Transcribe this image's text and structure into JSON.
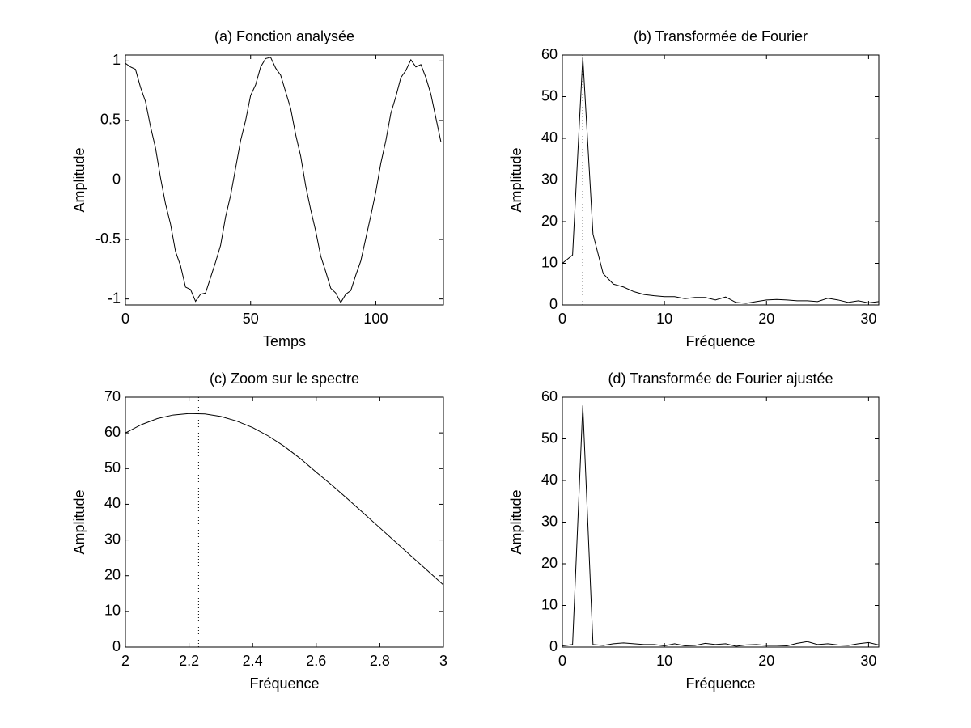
{
  "chart_data": [
    {
      "type": "line",
      "title": "(a) Fonction analysée",
      "xlabel": "Temps",
      "ylabel": "Amplitude",
      "color": "#000000",
      "x": [
        0,
        2,
        4,
        6,
        8,
        10,
        12,
        14,
        16,
        18,
        20,
        22,
        24,
        26,
        28,
        30,
        32,
        34,
        36,
        38,
        40,
        42,
        44,
        46,
        48,
        50,
        52,
        54,
        56,
        58,
        60,
        62,
        64,
        66,
        68,
        70,
        72,
        74,
        76,
        78,
        80,
        82,
        84,
        86,
        88,
        90,
        92,
        94,
        96,
        98,
        100,
        102,
        104,
        106,
        108,
        110,
        112,
        114,
        116,
        118,
        120,
        122,
        124,
        126
      ],
      "values": [
        0.98,
        0.95,
        0.93,
        0.78,
        0.66,
        0.45,
        0.27,
        0.02,
        -0.2,
        -0.37,
        -0.6,
        -0.72,
        -0.9,
        -0.92,
        -1.02,
        -0.96,
        -0.95,
        -0.82,
        -0.69,
        -0.55,
        -0.31,
        -0.13,
        0.1,
        0.33,
        0.5,
        0.71,
        0.8,
        0.95,
        1.02,
        1.03,
        0.94,
        0.88,
        0.74,
        0.6,
        0.38,
        0.2,
        -0.05,
        -0.25,
        -0.43,
        -0.64,
        -0.77,
        -0.91,
        -0.95,
        -1.03,
        -0.96,
        -0.93,
        -0.8,
        -0.68,
        -0.49,
        -0.3,
        -0.1,
        0.14,
        0.33,
        0.56,
        0.7,
        0.86,
        0.92,
        1.01,
        0.95,
        0.97,
        0.86,
        0.72,
        0.52,
        0.32
      ],
      "xlim": [
        0,
        127
      ],
      "ylim": [
        -1.05,
        1.05
      ],
      "xticks": [
        0,
        50,
        100
      ],
      "yticks": [
        -1,
        -0.5,
        0,
        0.5,
        1
      ]
    },
    {
      "type": "line",
      "title": "(b) Transformée de Fourier",
      "xlabel": "Fréquence",
      "ylabel": "Amplitude",
      "color": "#000000",
      "x": [
        0,
        1,
        2,
        3,
        4,
        5,
        6,
        7,
        8,
        9,
        10,
        11,
        12,
        13,
        14,
        15,
        16,
        17,
        18,
        19,
        20,
        21,
        22,
        23,
        24,
        25,
        26,
        27,
        28,
        29,
        30,
        31
      ],
      "values": [
        10,
        12,
        59.5,
        17,
        7.5,
        5,
        4.3,
        3.2,
        2.5,
        2.2,
        2,
        2,
        1.5,
        1.8,
        1.8,
        1.2,
        1.9,
        0.6,
        0.4,
        0.8,
        1.2,
        1.3,
        1.2,
        1,
        1,
        0.8,
        1.6,
        1.2,
        0.6,
        1,
        0.5,
        0.8
      ],
      "vline": 2,
      "xlim": [
        0,
        31
      ],
      "ylim": [
        0,
        60
      ],
      "xticks": [
        0,
        10,
        20,
        30
      ],
      "yticks": [
        0,
        10,
        20,
        30,
        40,
        50,
        60
      ]
    },
    {
      "type": "line",
      "title": "(c) Zoom sur le spectre",
      "xlabel": "Fréquence",
      "ylabel": "Amplitude",
      "color": "#000000",
      "x": [
        2,
        2.05,
        2.1,
        2.15,
        2.2,
        2.25,
        2.3,
        2.35,
        2.4,
        2.45,
        2.5,
        2.55,
        2.6,
        2.65,
        2.7,
        2.75,
        2.8,
        2.85,
        2.9,
        2.95,
        3
      ],
      "values": [
        60,
        62.3,
        64,
        65,
        65.4,
        65.3,
        64.6,
        63.3,
        61.5,
        59.1,
        56.2,
        52.8,
        49,
        45.3,
        41.4,
        37.4,
        33.4,
        29.4,
        25.4,
        21.4,
        17.4
      ],
      "vline": 2.23,
      "xlim": [
        2,
        3
      ],
      "ylim": [
        0,
        70
      ],
      "xticks": [
        2,
        2.2,
        2.4,
        2.6,
        2.8,
        3
      ],
      "yticks": [
        0,
        10,
        20,
        30,
        40,
        50,
        60,
        70
      ]
    },
    {
      "type": "line",
      "title": "(d) Transformée de Fourier ajustée",
      "xlabel": "Fréquence",
      "ylabel": "Amplitude",
      "color": "#000000",
      "x": [
        0,
        1,
        2,
        3,
        4,
        5,
        6,
        7,
        8,
        9,
        10,
        11,
        12,
        13,
        14,
        15,
        16,
        17,
        18,
        19,
        20,
        21,
        22,
        23,
        24,
        25,
        26,
        27,
        28,
        29,
        30,
        31
      ],
      "values": [
        0.3,
        0.6,
        58,
        0.6,
        0.4,
        0.8,
        1,
        0.8,
        0.6,
        0.6,
        0.3,
        0.8,
        0.3,
        0.4,
        0.9,
        0.6,
        0.8,
        0.2,
        0.5,
        0.6,
        0.4,
        0.4,
        0.3,
        0.9,
        1.3,
        0.6,
        0.8,
        0.5,
        0.4,
        0.8,
        1.1,
        0.5
      ],
      "xlim": [
        0,
        31
      ],
      "ylim": [
        0,
        60
      ],
      "xticks": [
        0,
        10,
        20,
        30
      ],
      "yticks": [
        0,
        10,
        20,
        30,
        40,
        50,
        60
      ]
    }
  ]
}
